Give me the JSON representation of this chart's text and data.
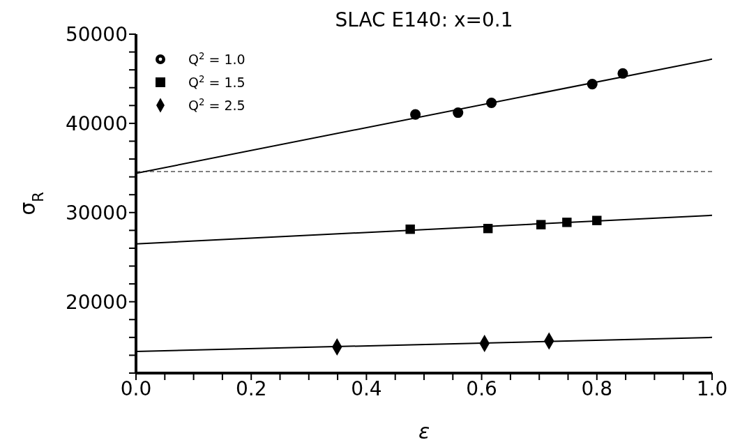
{
  "chart_data": {
    "type": "scatter",
    "title": "SLAC E140: x=0.1",
    "xlabel": "ε",
    "ylabel": "σ$_{R}$",
    "xlim": [
      0,
      1
    ],
    "xticks": [
      {
        "value": 0,
        "label": "0.0"
      },
      {
        "value": 0.05,
        "label": null
      },
      {
        "value": 0.1,
        "label": null
      },
      {
        "value": 0.15,
        "label": null
      },
      0.2,
      {
        "value": 0.25,
        "label": null
      },
      {
        "value": 0.3,
        "label": null
      },
      {
        "value": 0.35,
        "label": null
      },
      0.4,
      {
        "value": 0.45,
        "label": null
      },
      {
        "value": 0.5,
        "label": null
      },
      {
        "value": 0.55,
        "label": null
      },
      0.6,
      {
        "value": 0.65,
        "label": null
      },
      {
        "value": 0.7,
        "label": null
      },
      {
        "value": 0.75,
        "label": null
      },
      0.8,
      {
        "value": 0.85,
        "label": null
      },
      {
        "value": 0.9,
        "label": null
      },
      {
        "value": 0.95,
        "label": null
      },
      {
        "value": 1,
        "label": "1.0"
      }
    ],
    "ylim": [
      12000,
      50000
    ],
    "yticks": [
      {
        "value": 12000,
        "label": null
      },
      {
        "value": 14000,
        "label": null
      },
      {
        "value": 16000,
        "label": null
      },
      {
        "value": 18000,
        "label": null
      },
      20000,
      {
        "value": 22000,
        "label": null
      },
      {
        "value": 24000,
        "label": null
      },
      {
        "value": 26000,
        "label": null
      },
      {
        "value": 28000,
        "label": null
      },
      30000,
      {
        "value": 32000,
        "label": null
      },
      {
        "value": 34000,
        "label": null
      },
      {
        "value": 36000,
        "label": null
      },
      {
        "value": 38000,
        "label": null
      },
      40000,
      {
        "value": 42000,
        "label": null
      },
      {
        "value": 44000,
        "label": null
      },
      {
        "value": 46000,
        "label": null
      },
      {
        "value": 48000,
        "label": null
      },
      50000
    ],
    "legend": "top left",
    "grid": false,
    "series": [
      {
        "name": "Q$^{2}$ = 1.0",
        "color": "#000000",
        "marker": "circle",
        "x": [
          0.485,
          0.559,
          0.617,
          0.792,
          0.845
        ],
        "values": [
          41000,
          41200,
          42300,
          44400,
          45600
        ]
      },
      {
        "name": "Q$^{2}$ = 1.5",
        "color": "#000000",
        "marker": "square",
        "x": [
          0.476,
          0.611,
          0.703,
          0.748,
          0.8
        ],
        "values": [
          28130,
          28210,
          28640,
          28900,
          29110
        ]
      },
      {
        "name": "Q$^{2}$ = 2.5",
        "color": "#000000",
        "marker": "diamond",
        "x": [
          0.349,
          0.605,
          0.717
        ],
        "values": [
          14940,
          15330,
          15590
        ]
      },
      {
        "type": "line",
        "color": "#000000",
        "x": [
          0,
          1
        ],
        "values": [
          34400,
          47200
        ]
      },
      {
        "type": "line",
        "color": "#000000",
        "x": [
          0,
          1
        ],
        "values": [
          26490,
          29690
        ]
      },
      {
        "type": "line",
        "color": "#000000",
        "x": [
          0,
          1
        ],
        "values": [
          14420,
          16000
        ]
      }
    ],
    "ref_lines": [
      {
        "axis": "y",
        "value": 34600,
        "color": "#555555",
        "line_style": "dashed"
      }
    ]
  }
}
